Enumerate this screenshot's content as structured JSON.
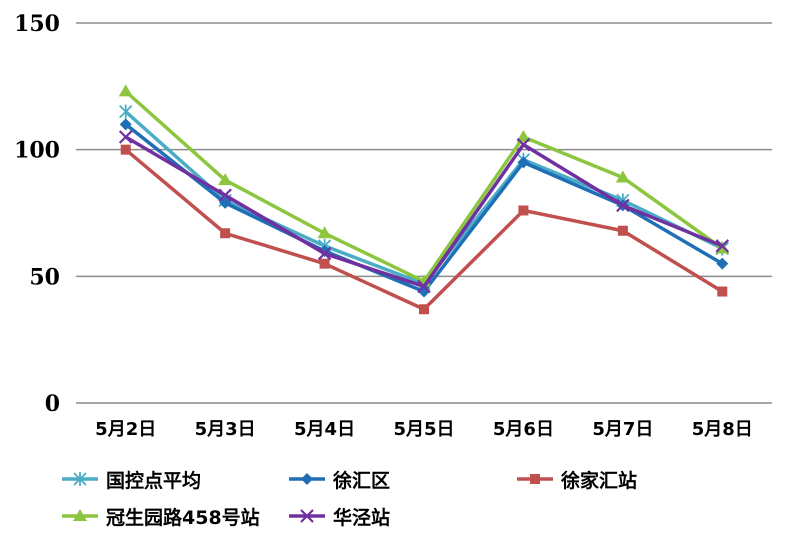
{
  "chart_data": {
    "type": "line",
    "categories": [
      "5月2日",
      "5月3日",
      "5月4日",
      "5月5日",
      "5月6日",
      "5月7日",
      "5月8日"
    ],
    "ylim": [
      0,
      150
    ],
    "yticks": [
      0,
      50,
      100,
      150
    ],
    "grid": true,
    "legend_position": "bottom",
    "series": [
      {
        "name": "国控点平均",
        "color": "#4bacc6",
        "marker": "star",
        "values": [
          115,
          80,
          62,
          47,
          96,
          80,
          61
        ]
      },
      {
        "name": "徐汇区",
        "color": "#1f6fb7",
        "marker": "diamond",
        "values": [
          110,
          79,
          60,
          44,
          95,
          78,
          55
        ]
      },
      {
        "name": "徐家汇站",
        "color": "#c0504d",
        "marker": "square",
        "values": [
          100,
          67,
          55,
          37,
          76,
          68,
          44
        ]
      },
      {
        "name": "冠生园路458号站",
        "color": "#8cc63f",
        "marker": "triangle",
        "values": [
          123,
          88,
          67,
          48,
          105,
          89,
          61
        ]
      },
      {
        "name": "华泾站",
        "color": "#7030a0",
        "marker": "x",
        "values": [
          105,
          82,
          59,
          46,
          102,
          78,
          62
        ]
      }
    ]
  }
}
